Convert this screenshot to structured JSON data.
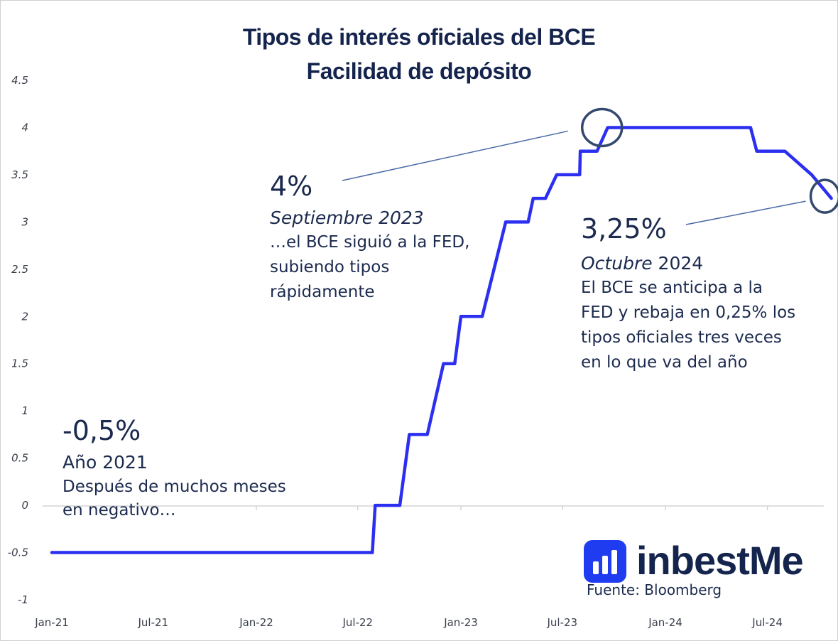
{
  "title_line1": "Tipos de interés oficiales del BCE",
  "title_line2": "Facilidad de depósito",
  "chart_data": {
    "type": "line",
    "title": "Tipos de interés oficiales del BCE — Facilidad de depósito",
    "xlabel": "",
    "ylabel": "",
    "ylim": [
      -1,
      4.5
    ],
    "grid": false,
    "y_ticks": [
      "4.5",
      "4",
      "3.5",
      "3",
      "2.5",
      "2",
      "1.5",
      "1",
      "0.5",
      "0",
      "-0.5",
      "-1"
    ],
    "x_ticks": [
      "Jan-21",
      "Jul-21",
      "Jan-22",
      "Jul-22",
      "Jan-23",
      "Jul-23",
      "Jan-24",
      "Jul-24"
    ],
    "series": [
      {
        "color": "#2b2ff0",
        "x": [
          "2021-01",
          "2022-07-27",
          "2022-08",
          "2022-09-14",
          "2022-10",
          "2022-11-02",
          "2022-12",
          "2022-12-21",
          "2023-01",
          "2023-02-08",
          "2023-03",
          "2023-03-22",
          "2023-05",
          "2023-05-10",
          "2023-06",
          "2023-06-21",
          "2023-08",
          "2023-08-02",
          "2023-09",
          "2023-09-20",
          "2024-06",
          "2024-06-12",
          "2024-08",
          "2024-09-18",
          "2024-10-23"
        ],
        "values": [
          -0.5,
          -0.5,
          0,
          0,
          0.75,
          0.75,
          1.5,
          1.5,
          2.0,
          2.0,
          2.5,
          3.0,
          3.0,
          3.25,
          3.25,
          3.5,
          3.5,
          3.75,
          3.75,
          4.0,
          4.0,
          3.75,
          3.75,
          3.5,
          3.25
        ]
      }
    ]
  },
  "annotations": {
    "a2021": {
      "value": "-0,5%",
      "period": "Año 2021",
      "text1": "Después de muchos meses",
      "text2": "en negativo…"
    },
    "a2023": {
      "value": "4%",
      "period": "Septiembre 2023",
      "text1": "…el BCE siguió a la FED,",
      "text2": "subiendo tipos",
      "text3": "rápidamente"
    },
    "a2024": {
      "value": "3,25%",
      "period_italic": "Octubre",
      "period_year": " 2024",
      "text1": "El BCE se anticipa a la",
      "text2": "FED y rebaja en 0,25% los",
      "text3": "tipos oficiales tres veces",
      "text4": "en lo que va del año"
    }
  },
  "logo_text": "inbestMe",
  "source": "Fuente: Bloomberg",
  "colors": {
    "line": "#2b2ff0",
    "navy": "#14244d",
    "circle": "#34496e",
    "brand": "#1f3cf0"
  }
}
